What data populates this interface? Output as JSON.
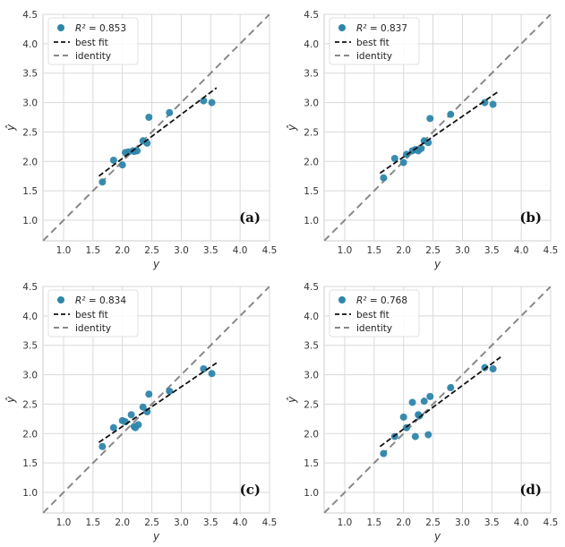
{
  "chart_data": [
    {
      "type": "scatter",
      "panel_label": "(a)",
      "xlabel": "y",
      "ylabel": "ŷ",
      "xlim": [
        0.65,
        4.5
      ],
      "ylim": [
        0.65,
        4.5
      ],
      "xticks": [
        "1.0",
        "1.5",
        "2.0",
        "2.5",
        "3.0",
        "3.5",
        "4.0",
        "4.5"
      ],
      "yticks": [
        "1.0",
        "1.5",
        "2.0",
        "2.5",
        "3.0",
        "3.5",
        "4.0",
        "4.5"
      ],
      "legend": {
        "r2_prefix": "R² = ",
        "r2_value": "0.853",
        "fit_label": "best fit",
        "identity_label": "identity"
      },
      "points": {
        "x": [
          1.66,
          1.85,
          2.0,
          2.05,
          2.1,
          2.18,
          2.2,
          2.25,
          2.35,
          2.42,
          2.45,
          2.8,
          3.38,
          3.52
        ],
        "y": [
          1.65,
          2.02,
          1.94,
          2.15,
          2.16,
          2.18,
          2.17,
          2.18,
          2.35,
          2.31,
          2.75,
          2.83,
          3.03,
          3.0
        ]
      },
      "best_fit": {
        "x": [
          1.6,
          3.6
        ],
        "y": [
          1.75,
          3.25
        ]
      }
    },
    {
      "type": "scatter",
      "panel_label": "(b)",
      "xlabel": "y",
      "ylabel": "ŷ",
      "xlim": [
        0.65,
        4.5
      ],
      "ylim": [
        0.65,
        4.5
      ],
      "xticks": [
        "1.0",
        "1.5",
        "2.0",
        "2.5",
        "3.0",
        "3.5",
        "4.0",
        "4.5"
      ],
      "yticks": [
        "1.0",
        "1.5",
        "2.0",
        "2.5",
        "3.0",
        "3.5",
        "4.0",
        "4.5"
      ],
      "legend": {
        "r2_prefix": "R² = ",
        "r2_value": "0.837",
        "fit_label": "best fit",
        "identity_label": "identity"
      },
      "points": {
        "x": [
          1.66,
          1.85,
          2.0,
          2.05,
          2.15,
          2.2,
          2.25,
          2.3,
          2.35,
          2.42,
          2.45,
          2.8,
          3.38,
          3.52
        ],
        "y": [
          1.72,
          2.05,
          1.98,
          2.12,
          2.18,
          2.2,
          2.18,
          2.22,
          2.35,
          2.32,
          2.73,
          2.8,
          3.0,
          2.97
        ]
      },
      "best_fit": {
        "x": [
          1.6,
          3.6
        ],
        "y": [
          1.8,
          3.18
        ]
      }
    },
    {
      "type": "scatter",
      "panel_label": "(c)",
      "xlabel": "y",
      "ylabel": "ŷ",
      "xlim": [
        0.65,
        4.5
      ],
      "ylim": [
        0.65,
        4.5
      ],
      "xticks": [
        "1.0",
        "1.5",
        "2.0",
        "2.5",
        "3.0",
        "3.5",
        "4.0",
        "4.5"
      ],
      "yticks": [
        "1.0",
        "1.5",
        "2.0",
        "2.5",
        "3.0",
        "3.5",
        "4.0",
        "4.5"
      ],
      "legend": {
        "r2_prefix": "R² = ",
        "r2_value": "0.834",
        "fit_label": "best fit",
        "identity_label": "identity"
      },
      "points": {
        "x": [
          1.66,
          1.85,
          2.0,
          2.05,
          2.15,
          2.2,
          2.22,
          2.27,
          2.35,
          2.42,
          2.45,
          2.8,
          3.38,
          3.52
        ],
        "y": [
          1.78,
          2.1,
          2.22,
          2.2,
          2.32,
          2.12,
          2.1,
          2.15,
          2.45,
          2.37,
          2.67,
          2.72,
          3.1,
          3.02
        ]
      },
      "best_fit": {
        "x": [
          1.6,
          3.6
        ],
        "y": [
          1.85,
          3.2
        ]
      }
    },
    {
      "type": "scatter",
      "panel_label": "(d)",
      "xlabel": "y",
      "ylabel": "ŷ",
      "xlim": [
        0.65,
        4.5
      ],
      "ylim": [
        0.65,
        4.5
      ],
      "xticks": [
        "1.0",
        "1.5",
        "2.0",
        "2.5",
        "3.0",
        "3.5",
        "4.0",
        "4.5"
      ],
      "yticks": [
        "1.0",
        "1.5",
        "2.0",
        "2.5",
        "3.0",
        "3.5",
        "4.0",
        "4.5"
      ],
      "legend": {
        "r2_prefix": "R² = ",
        "r2_value": "0.768",
        "fit_label": "best fit",
        "identity_label": "identity"
      },
      "points": {
        "x": [
          1.66,
          1.85,
          2.0,
          2.05,
          2.15,
          2.2,
          2.25,
          2.27,
          2.35,
          2.42,
          2.45,
          2.8,
          3.38,
          3.52
        ],
        "y": [
          1.66,
          1.95,
          2.28,
          2.1,
          2.53,
          1.95,
          2.32,
          2.3,
          2.55,
          1.98,
          2.63,
          2.78,
          3.12,
          3.1
        ]
      },
      "best_fit": {
        "x": [
          1.6,
          3.65
        ],
        "y": [
          1.78,
          3.3
        ]
      }
    }
  ],
  "colors": {
    "marker": "#2e86ab",
    "best_fit": "#111111",
    "identity": "#888888"
  }
}
